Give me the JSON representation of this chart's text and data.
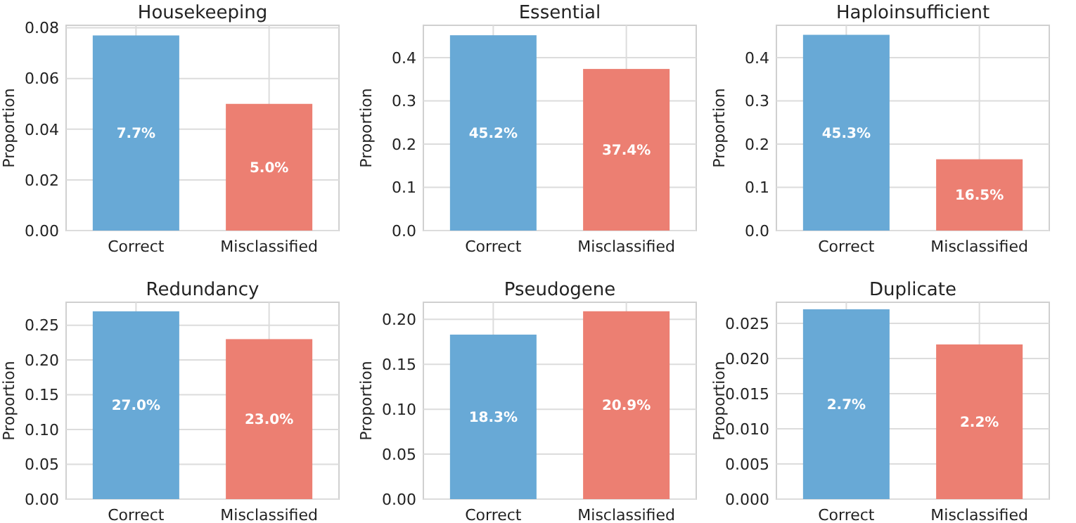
{
  "chart_data": [
    {
      "type": "bar",
      "title": "Housekeeping",
      "ylabel": "Proportion",
      "categories": [
        "Correct",
        "Misclassified"
      ],
      "values": [
        0.077,
        0.05
      ],
      "colors": [
        "#68a9d6",
        "#ec7f72"
      ],
      "value_labels": [
        "7.7%",
        "5.0%"
      ],
      "ylim": [
        0,
        0.081
      ],
      "yticks": [
        {
          "value": 0,
          "label": "0.00"
        },
        {
          "value": 0.02,
          "label": "0.02"
        },
        {
          "value": 0.04,
          "label": "0.04"
        },
        {
          "value": 0.06,
          "label": "0.06"
        },
        {
          "value": 0.08,
          "label": "0.08"
        }
      ],
      "grid": true
    },
    {
      "type": "bar",
      "title": "Essential",
      "ylabel": "Proportion",
      "categories": [
        "Correct",
        "Misclassified"
      ],
      "values": [
        0.452,
        0.374
      ],
      "colors": [
        "#68a9d6",
        "#ec7f72"
      ],
      "value_labels": [
        "45.2%",
        "37.4%"
      ],
      "ylim": [
        0,
        0.475
      ],
      "yticks": [
        {
          "value": 0,
          "label": "0.0"
        },
        0.1,
        0.2,
        0.3,
        0.4
      ],
      "grid": true
    },
    {
      "type": "bar",
      "title": "Haploinsufficient",
      "ylabel": "Proportion",
      "categories": [
        "Correct",
        "Misclassified"
      ],
      "values": [
        0.453,
        0.165
      ],
      "colors": [
        "#68a9d6",
        "#ec7f72"
      ],
      "value_labels": [
        "45.3%",
        "16.5%"
      ],
      "ylim": [
        0,
        0.475
      ],
      "yticks": [
        {
          "value": 0,
          "label": "0.0"
        },
        0.1,
        0.2,
        0.3,
        0.4
      ],
      "grid": true
    },
    {
      "type": "bar",
      "title": "Redundancy",
      "ylabel": "Proportion",
      "categories": [
        "Correct",
        "Misclassified"
      ],
      "values": [
        0.27,
        0.23
      ],
      "colors": [
        "#68a9d6",
        "#ec7f72"
      ],
      "value_labels": [
        "27.0%",
        "23.0%"
      ],
      "ylim": [
        0,
        0.283
      ],
      "yticks": [
        {
          "value": 0,
          "label": "0.00"
        },
        0.05,
        {
          "value": 0.1,
          "label": "0.10"
        },
        0.15,
        {
          "value": 0.2,
          "label": "0.20"
        },
        0.25
      ],
      "grid": true
    },
    {
      "type": "bar",
      "title": "Pseudogene",
      "ylabel": "Proportion",
      "categories": [
        "Correct",
        "Misclassified"
      ],
      "values": [
        0.183,
        0.209
      ],
      "colors": [
        "#68a9d6",
        "#ec7f72"
      ],
      "value_labels": [
        "18.3%",
        "20.9%"
      ],
      "ylim": [
        0,
        0.219
      ],
      "yticks": [
        {
          "value": 0,
          "label": "0.00"
        },
        0.05,
        {
          "value": 0.1,
          "label": "0.10"
        },
        0.15,
        {
          "value": 0.2,
          "label": "0.20"
        }
      ],
      "grid": true
    },
    {
      "type": "bar",
      "title": "Duplicate",
      "ylabel": "Proportion",
      "categories": [
        "Correct",
        "Misclassified"
      ],
      "values": [
        0.027,
        0.022
      ],
      "colors": [
        "#68a9d6",
        "#ec7f72"
      ],
      "value_labels": [
        "2.7%",
        "2.2%"
      ],
      "ylim": [
        0,
        0.028
      ],
      "yticks": [
        {
          "value": 0,
          "label": "0.000"
        },
        0.005,
        {
          "value": 0.01,
          "label": "0.010"
        },
        0.015,
        {
          "value": 0.02,
          "label": "0.020"
        },
        0.025
      ],
      "grid": true
    }
  ]
}
